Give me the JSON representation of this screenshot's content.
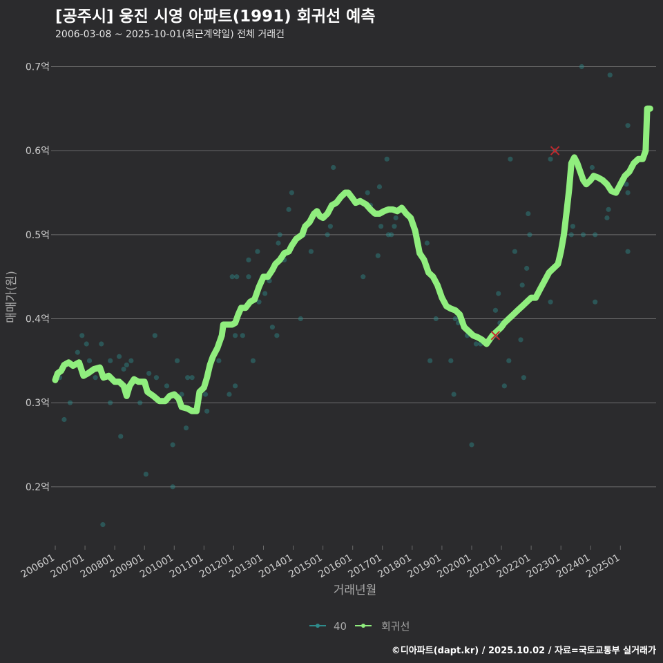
{
  "title": "[공주시] 웅진 시영 아파트(1991) 회귀선 예측",
  "subtitle": "2006-03-08 ~ 2025-10-01(최근계약일) 전체 거래건",
  "caption": "©디아파트(dapt.kr) / 2025.10.02 / 자료=국토교통부 실거래가",
  "colors": {
    "background": "#2b2b2d",
    "grid": "#6b6b6b",
    "scatter": "#2e8b8b",
    "regression": "#90ee7e",
    "marker": "#c0282d",
    "axis_text": "#cfcfcf"
  },
  "chart_data": {
    "type": "scatter",
    "xlabel": "거래년월",
    "ylabel": "매매가(원)",
    "x_unit": "decimal year",
    "xlim": [
      2006.0,
      2026.2
    ],
    "ylim": [
      0.13,
      0.73
    ],
    "yticks": [
      {
        "value": 0.2,
        "label": "0.2억"
      },
      {
        "value": 0.3,
        "label": "0.3억"
      },
      {
        "value": 0.4,
        "label": "0.4억"
      },
      {
        "value": 0.5,
        "label": "0.5억"
      },
      {
        "value": 0.6,
        "label": "0.6억"
      },
      {
        "value": 0.7,
        "label": "0.7억"
      }
    ],
    "xticks": [
      {
        "value": 2006.0,
        "label": "200601"
      },
      {
        "value": 2007.0,
        "label": "200701"
      },
      {
        "value": 2008.0,
        "label": "200801"
      },
      {
        "value": 2009.0,
        "label": "200901"
      },
      {
        "value": 2010.0,
        "label": "201001"
      },
      {
        "value": 2011.0,
        "label": "201101"
      },
      {
        "value": 2012.0,
        "label": "201201"
      },
      {
        "value": 2013.0,
        "label": "201301"
      },
      {
        "value": 2014.0,
        "label": "201401"
      },
      {
        "value": 2015.0,
        "label": "201501"
      },
      {
        "value": 2016.0,
        "label": "201601"
      },
      {
        "value": 2017.0,
        "label": "201701"
      },
      {
        "value": 2018.0,
        "label": "201801"
      },
      {
        "value": 2019.0,
        "label": "201901"
      },
      {
        "value": 2020.0,
        "label": "202001"
      },
      {
        "value": 2021.0,
        "label": "202101"
      },
      {
        "value": 2022.0,
        "label": "202201"
      },
      {
        "value": 2023.0,
        "label": "202301"
      },
      {
        "value": 2024.0,
        "label": "202401"
      },
      {
        "value": 2025.0,
        "label": "202501"
      }
    ],
    "legend": {
      "position": "bottom",
      "items": [
        {
          "name": "40",
          "color": "#2e8b8b"
        },
        {
          "name": "회귀선",
          "color": "#90ee7e"
        }
      ]
    },
    "series": [
      {
        "name": "40",
        "kind": "scatter",
        "points": [
          [
            2006.15,
            0.33
          ],
          [
            2006.3,
            0.28
          ],
          [
            2006.5,
            0.3
          ],
          [
            2006.6,
            0.345
          ],
          [
            2006.75,
            0.36
          ],
          [
            2006.9,
            0.38
          ],
          [
            2007.05,
            0.37
          ],
          [
            2007.15,
            0.35
          ],
          [
            2007.35,
            0.33
          ],
          [
            2007.55,
            0.37
          ],
          [
            2007.6,
            0.155
          ],
          [
            2007.85,
            0.3
          ],
          [
            2007.85,
            0.35
          ],
          [
            2008.15,
            0.355
          ],
          [
            2008.2,
            0.26
          ],
          [
            2008.3,
            0.34
          ],
          [
            2008.4,
            0.345
          ],
          [
            2008.55,
            0.35
          ],
          [
            2008.85,
            0.3
          ],
          [
            2009.05,
            0.215
          ],
          [
            2009.15,
            0.335
          ],
          [
            2009.35,
            0.38
          ],
          [
            2009.4,
            0.33
          ],
          [
            2009.75,
            0.32
          ],
          [
            2009.95,
            0.25
          ],
          [
            2009.95,
            0.2
          ],
          [
            2010.1,
            0.35
          ],
          [
            2010.25,
            0.31
          ],
          [
            2010.4,
            0.27
          ],
          [
            2010.45,
            0.33
          ],
          [
            2010.6,
            0.33
          ],
          [
            2011.05,
            0.31
          ],
          [
            2011.1,
            0.29
          ],
          [
            2011.5,
            0.35
          ],
          [
            2011.85,
            0.31
          ],
          [
            2011.95,
            0.45
          ],
          [
            2012.05,
            0.32
          ],
          [
            2012.05,
            0.38
          ],
          [
            2012.1,
            0.45
          ],
          [
            2012.3,
            0.38
          ],
          [
            2012.5,
            0.45
          ],
          [
            2012.5,
            0.47
          ],
          [
            2012.65,
            0.35
          ],
          [
            2012.8,
            0.48
          ],
          [
            2012.85,
            0.42
          ],
          [
            2013.05,
            0.43
          ],
          [
            2013.2,
            0.445
          ],
          [
            2013.3,
            0.39
          ],
          [
            2013.45,
            0.38
          ],
          [
            2013.5,
            0.49
          ],
          [
            2013.55,
            0.5
          ],
          [
            2013.7,
            0.47
          ],
          [
            2013.85,
            0.53
          ],
          [
            2013.95,
            0.55
          ],
          [
            2014.25,
            0.4
          ],
          [
            2014.35,
            0.505
          ],
          [
            2014.35,
            0.5
          ],
          [
            2014.6,
            0.48
          ],
          [
            2015.05,
            0.52
          ],
          [
            2015.15,
            0.5
          ],
          [
            2015.25,
            0.51
          ],
          [
            2015.35,
            0.58
          ],
          [
            2016.35,
            0.45
          ],
          [
            2016.5,
            0.55
          ],
          [
            2016.6,
            0.535
          ],
          [
            2016.85,
            0.475
          ],
          [
            2016.9,
            0.557
          ],
          [
            2016.95,
            0.51
          ],
          [
            2017.15,
            0.59
          ],
          [
            2017.2,
            0.5
          ],
          [
            2017.3,
            0.5
          ],
          [
            2017.4,
            0.51
          ],
          [
            2017.45,
            0.52
          ],
          [
            2018.5,
            0.49
          ],
          [
            2018.6,
            0.35
          ],
          [
            2018.8,
            0.4
          ],
          [
            2019.3,
            0.35
          ],
          [
            2019.4,
            0.31
          ],
          [
            2019.45,
            0.4
          ],
          [
            2019.55,
            0.395
          ],
          [
            2019.85,
            0.38
          ],
          [
            2020.0,
            0.25
          ],
          [
            2020.15,
            0.37
          ],
          [
            2020.3,
            0.37
          ],
          [
            2020.8,
            0.38
          ],
          [
            2020.8,
            0.41
          ],
          [
            2020.9,
            0.43
          ],
          [
            2020.95,
            0.395
          ],
          [
            2021.1,
            0.32
          ],
          [
            2021.25,
            0.35
          ],
          [
            2021.25,
            0.4
          ],
          [
            2021.3,
            0.59
          ],
          [
            2021.45,
            0.48
          ],
          [
            2021.65,
            0.375
          ],
          [
            2021.7,
            0.44
          ],
          [
            2021.75,
            0.33
          ],
          [
            2021.85,
            0.46
          ],
          [
            2021.9,
            0.525
          ],
          [
            2021.95,
            0.5
          ],
          [
            2022.65,
            0.42
          ],
          [
            2022.65,
            0.59
          ],
          [
            2022.8,
            0.6
          ],
          [
            2023.35,
            0.5
          ],
          [
            2023.4,
            0.51
          ],
          [
            2023.7,
            0.7
          ],
          [
            2023.75,
            0.5
          ],
          [
            2024.05,
            0.58
          ],
          [
            2024.15,
            0.42
          ],
          [
            2024.15,
            0.5
          ],
          [
            2024.55,
            0.52
          ],
          [
            2024.6,
            0.53
          ],
          [
            2024.65,
            0.69
          ],
          [
            2025.2,
            0.56
          ],
          [
            2025.25,
            0.55
          ],
          [
            2025.25,
            0.48
          ],
          [
            2025.25,
            0.63
          ]
        ]
      },
      {
        "name": "회귀선",
        "kind": "line",
        "points": [
          [
            2006.0,
            0.327
          ],
          [
            2006.08,
            0.335
          ],
          [
            2006.2,
            0.338
          ],
          [
            2006.3,
            0.345
          ],
          [
            2006.45,
            0.348
          ],
          [
            2006.6,
            0.344
          ],
          [
            2006.8,
            0.348
          ],
          [
            2006.95,
            0.332
          ],
          [
            2007.1,
            0.335
          ],
          [
            2007.3,
            0.34
          ],
          [
            2007.5,
            0.342
          ],
          [
            2007.62,
            0.33
          ],
          [
            2007.8,
            0.332
          ],
          [
            2008.0,
            0.325
          ],
          [
            2008.15,
            0.325
          ],
          [
            2008.3,
            0.32
          ],
          [
            2008.4,
            0.308
          ],
          [
            2008.5,
            0.32
          ],
          [
            2008.65,
            0.328
          ],
          [
            2008.8,
            0.325
          ],
          [
            2009.0,
            0.325
          ],
          [
            2009.1,
            0.313
          ],
          [
            2009.3,
            0.308
          ],
          [
            2009.5,
            0.302
          ],
          [
            2009.7,
            0.302
          ],
          [
            2009.85,
            0.308
          ],
          [
            2010.0,
            0.31
          ],
          [
            2010.15,
            0.305
          ],
          [
            2010.25,
            0.295
          ],
          [
            2010.45,
            0.293
          ],
          [
            2010.6,
            0.29
          ],
          [
            2010.75,
            0.29
          ],
          [
            2010.85,
            0.313
          ],
          [
            2011.0,
            0.318
          ],
          [
            2011.1,
            0.33
          ],
          [
            2011.2,
            0.345
          ],
          [
            2011.3,
            0.355
          ],
          [
            2011.45,
            0.365
          ],
          [
            2011.6,
            0.38
          ],
          [
            2011.65,
            0.393
          ],
          [
            2011.8,
            0.393
          ],
          [
            2011.95,
            0.393
          ],
          [
            2012.05,
            0.395
          ],
          [
            2012.15,
            0.405
          ],
          [
            2012.25,
            0.413
          ],
          [
            2012.4,
            0.413
          ],
          [
            2012.55,
            0.42
          ],
          [
            2012.7,
            0.423
          ],
          [
            2012.85,
            0.438
          ],
          [
            2013.0,
            0.45
          ],
          [
            2013.15,
            0.45
          ],
          [
            2013.3,
            0.458
          ],
          [
            2013.4,
            0.465
          ],
          [
            2013.55,
            0.47
          ],
          [
            2013.7,
            0.478
          ],
          [
            2013.85,
            0.48
          ],
          [
            2013.95,
            0.487
          ],
          [
            2014.1,
            0.495
          ],
          [
            2014.3,
            0.5
          ],
          [
            2014.4,
            0.51
          ],
          [
            2014.55,
            0.515
          ],
          [
            2014.7,
            0.525
          ],
          [
            2014.8,
            0.528
          ],
          [
            2014.9,
            0.522
          ],
          [
            2015.0,
            0.52
          ],
          [
            2015.15,
            0.525
          ],
          [
            2015.3,
            0.535
          ],
          [
            2015.45,
            0.538
          ],
          [
            2015.6,
            0.545
          ],
          [
            2015.75,
            0.55
          ],
          [
            2015.85,
            0.55
          ],
          [
            2016.0,
            0.543
          ],
          [
            2016.1,
            0.538
          ],
          [
            2016.25,
            0.54
          ],
          [
            2016.45,
            0.536
          ],
          [
            2016.6,
            0.53
          ],
          [
            2016.75,
            0.525
          ],
          [
            2016.9,
            0.525
          ],
          [
            2017.05,
            0.528
          ],
          [
            2017.2,
            0.53
          ],
          [
            2017.35,
            0.53
          ],
          [
            2017.5,
            0.528
          ],
          [
            2017.65,
            0.532
          ],
          [
            2017.8,
            0.525
          ],
          [
            2017.95,
            0.52
          ],
          [
            2018.1,
            0.505
          ],
          [
            2018.25,
            0.478
          ],
          [
            2018.4,
            0.47
          ],
          [
            2018.55,
            0.455
          ],
          [
            2018.7,
            0.45
          ],
          [
            2018.85,
            0.44
          ],
          [
            2019.0,
            0.425
          ],
          [
            2019.15,
            0.415
          ],
          [
            2019.3,
            0.412
          ],
          [
            2019.45,
            0.41
          ],
          [
            2019.6,
            0.405
          ],
          [
            2019.75,
            0.39
          ],
          [
            2019.9,
            0.385
          ],
          [
            2020.05,
            0.38
          ],
          [
            2020.2,
            0.378
          ],
          [
            2020.35,
            0.375
          ],
          [
            2020.5,
            0.37
          ],
          [
            2020.6,
            0.375
          ],
          [
            2020.7,
            0.38
          ],
          [
            2020.85,
            0.385
          ],
          [
            2021.0,
            0.39
          ],
          [
            2021.1,
            0.395
          ],
          [
            2021.25,
            0.4
          ],
          [
            2021.4,
            0.405
          ],
          [
            2021.55,
            0.41
          ],
          [
            2021.7,
            0.415
          ],
          [
            2021.85,
            0.42
          ],
          [
            2022.0,
            0.425
          ],
          [
            2022.15,
            0.425
          ],
          [
            2022.3,
            0.435
          ],
          [
            2022.45,
            0.445
          ],
          [
            2022.6,
            0.455
          ],
          [
            2022.75,
            0.46
          ],
          [
            2022.9,
            0.465
          ],
          [
            2023.0,
            0.48
          ],
          [
            2023.1,
            0.5
          ],
          [
            2023.2,
            0.53
          ],
          [
            2023.28,
            0.555
          ],
          [
            2023.35,
            0.585
          ],
          [
            2023.45,
            0.592
          ],
          [
            2023.55,
            0.585
          ],
          [
            2023.65,
            0.575
          ],
          [
            2023.75,
            0.565
          ],
          [
            2023.85,
            0.56
          ],
          [
            2024.0,
            0.565
          ],
          [
            2024.1,
            0.57
          ],
          [
            2024.25,
            0.568
          ],
          [
            2024.4,
            0.565
          ],
          [
            2024.55,
            0.56
          ],
          [
            2024.7,
            0.552
          ],
          [
            2024.85,
            0.55
          ],
          [
            2025.0,
            0.56
          ],
          [
            2025.15,
            0.57
          ],
          [
            2025.3,
            0.575
          ],
          [
            2025.45,
            0.585
          ],
          [
            2025.6,
            0.59
          ],
          [
            2025.75,
            0.59
          ],
          [
            2025.85,
            0.6
          ],
          [
            2025.9,
            0.65
          ],
          [
            2026.0,
            0.65
          ]
        ]
      }
    ],
    "markers": [
      {
        "x": 2020.8,
        "y": 0.38
      },
      {
        "x": 2022.8,
        "y": 0.6
      }
    ]
  }
}
